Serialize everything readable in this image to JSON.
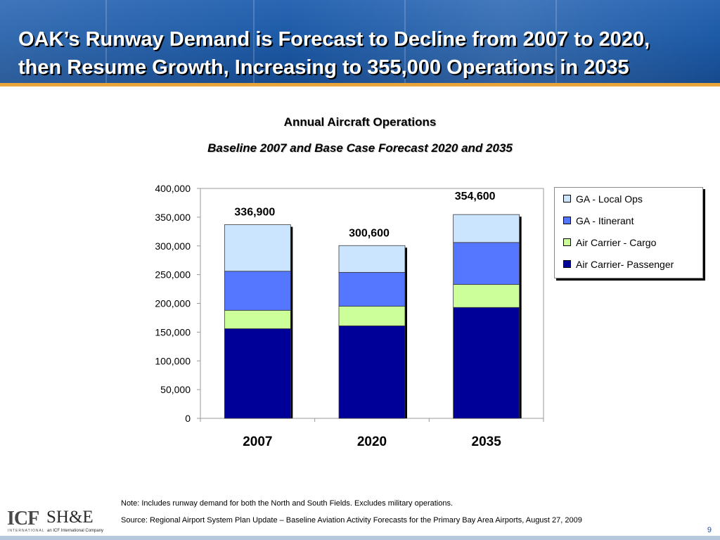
{
  "slide": {
    "title_line1": "OAK’s Runway Demand is Forecast to Decline from 2007 to 2020,",
    "title_line2": "then Resume Growth, Increasing to 355,000 Operations in 2035",
    "note": "Note: Includes runway demand for both the North and South Fields. Excludes military operations.",
    "source": "Source: Regional Airport System Plan Update – Baseline Aviation Activity Forecasts for the Primary Bay Area Airports, August 27, 2009",
    "page_number": "9"
  },
  "logos": {
    "icf_text": "ICF",
    "icf_subtext": "INTERNATIONAL",
    "she_text": "SH&E",
    "she_subtext": "an ICF International Company"
  },
  "colors": {
    "banner": "#1d5aa6",
    "accent_rule": "#e8a33a",
    "title_text": "#ffffff"
  },
  "chart_data": {
    "type": "bar",
    "stacked": true,
    "title": "Annual Aircraft Operations",
    "subtitle": "Baseline 2007 and Base Case Forecast 2020 and 2035",
    "categories": [
      "2007",
      "2020",
      "2035"
    ],
    "series": [
      {
        "name": "Air Carrier- Passenger",
        "color": "#000099",
        "values": [
          156000,
          161000,
          193000
        ]
      },
      {
        "name": "Air Carrier - Cargo",
        "color": "#ccff99",
        "values": [
          32000,
          34000,
          40000
        ]
      },
      {
        "name": "GA  - Itinerant",
        "color": "#5577ff",
        "values": [
          68000,
          59000,
          73000
        ]
      },
      {
        "name": "GA - Local Ops",
        "color": "#cce5ff",
        "values": [
          80900,
          46600,
          48600
        ]
      }
    ],
    "totals": [
      336900,
      300600,
      354600
    ],
    "total_labels": [
      "336,900",
      "300,600",
      "354,600"
    ],
    "ylim": [
      0,
      400000
    ],
    "yticks": [
      0,
      50000,
      100000,
      150000,
      200000,
      250000,
      300000,
      350000,
      400000
    ],
    "ytick_labels": [
      "0",
      "50,000",
      "100,000",
      "150,000",
      "200,000",
      "250,000",
      "300,000",
      "350,000",
      "400,000"
    ],
    "grid": false,
    "legend_position": "right",
    "legend_order": [
      "GA - Local Ops",
      "GA  - Itinerant",
      "Air Carrier - Cargo",
      "Air Carrier- Passenger"
    ]
  }
}
